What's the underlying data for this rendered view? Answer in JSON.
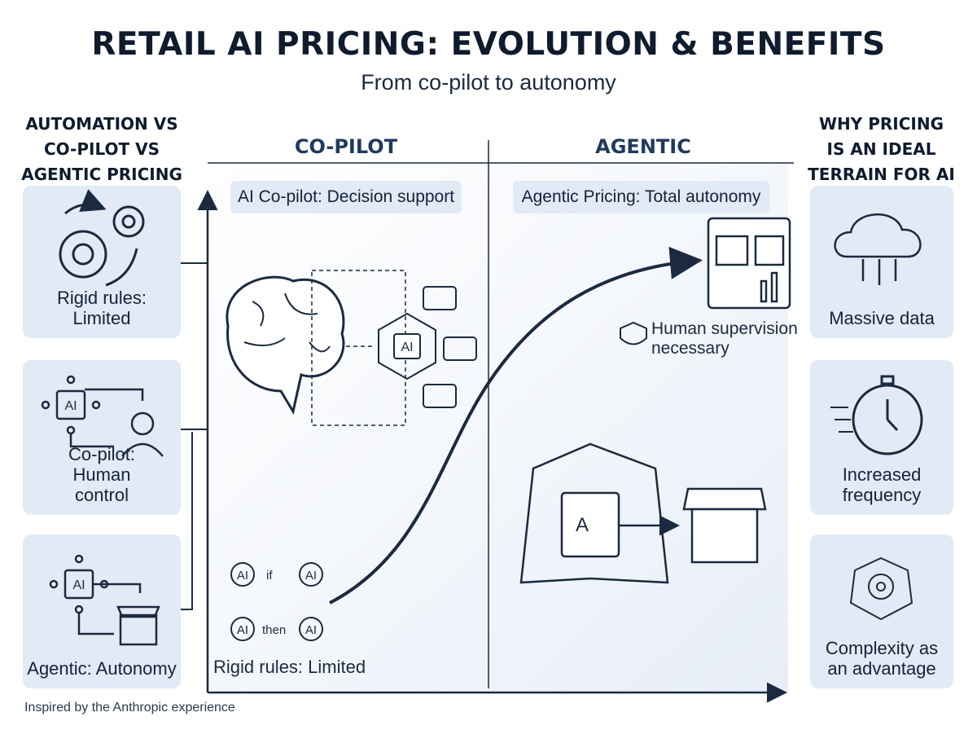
{
  "header": {
    "title": "RETAIL AI PRICING: EVOLUTION & BENEFITS",
    "subtitle": "From co-pilot to autonomy"
  },
  "left_panel": {
    "heading_lines": [
      "AUTOMATION VS",
      "CO-PILOT VS",
      "AGENTIC PRICING"
    ],
    "cards": [
      {
        "label": "Rigid rules: Limited"
      },
      {
        "label": "Co-pilot: Human control"
      },
      {
        "label": "Agentic: Autonomy"
      }
    ]
  },
  "center": {
    "columns": [
      {
        "heading": "CO-PILOT",
        "caption": "AI Co-pilot: Decision support"
      },
      {
        "heading": "AGENTIC",
        "caption": "Agentic Pricing: Total autonomy"
      }
    ],
    "note": "Human supervision necessary",
    "base_label": "Rigid rules: Limited",
    "icon_texts": {
      "ai": "AI",
      "if": "if",
      "then": "then",
      "agent": "A"
    }
  },
  "right_panel": {
    "heading_lines": [
      "WHY PRICING",
      "IS AN IDEAL",
      "TERRAIN FOR AI"
    ],
    "cards": [
      {
        "label": "Massive data"
      },
      {
        "label": "Increased frequency"
      },
      {
        "label": "Complexity as an advantage"
      }
    ]
  },
  "footer": "Inspired by the Anthropic experience"
}
